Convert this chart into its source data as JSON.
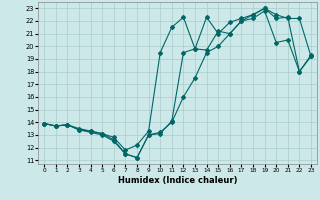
{
  "xlabel": "Humidex (Indice chaleur)",
  "bg_color": "#cce8e8",
  "grid_color": "#aacccc",
  "line_color": "#006666",
  "xlim_min": -0.5,
  "xlim_max": 23.5,
  "ylim_min": 10.7,
  "ylim_max": 23.5,
  "xticks": [
    0,
    1,
    2,
    3,
    4,
    5,
    6,
    7,
    8,
    9,
    10,
    11,
    12,
    13,
    14,
    15,
    16,
    17,
    18,
    19,
    20,
    21,
    22,
    23
  ],
  "yticks": [
    11,
    12,
    13,
    14,
    15,
    16,
    17,
    18,
    19,
    20,
    21,
    22,
    23
  ],
  "line1_x": [
    0,
    1,
    2,
    3,
    4,
    5,
    6,
    7,
    8,
    9,
    10,
    11,
    12,
    13,
    14,
    15,
    16,
    17,
    18,
    19,
    20,
    21,
    22,
    23
  ],
  "line1_y": [
    13.9,
    13.7,
    13.8,
    13.5,
    13.3,
    13.1,
    12.6,
    11.5,
    11.2,
    13.0,
    13.2,
    14.0,
    16.0,
    17.5,
    19.5,
    20.0,
    21.0,
    22.0,
    22.5,
    23.0,
    22.5,
    22.2,
    22.2,
    19.2
  ],
  "line2_x": [
    0,
    1,
    2,
    3,
    4,
    5,
    6,
    7,
    8,
    9,
    10,
    11,
    12,
    13,
    14,
    15,
    16,
    17,
    18,
    19,
    20,
    21,
    22,
    23
  ],
  "line2_y": [
    13.9,
    13.7,
    13.8,
    13.4,
    13.2,
    13.0,
    12.5,
    11.5,
    11.2,
    13.0,
    13.1,
    14.1,
    19.5,
    19.8,
    19.7,
    21.2,
    21.0,
    22.0,
    22.2,
    22.8,
    20.3,
    20.5,
    18.0,
    19.3
  ],
  "line3_x": [
    0,
    1,
    2,
    3,
    4,
    5,
    6,
    7,
    8,
    9,
    10,
    11,
    12,
    13,
    14,
    15,
    16,
    17,
    18,
    19,
    20,
    21,
    22,
    23
  ],
  "line3_y": [
    13.9,
    13.7,
    13.8,
    13.4,
    13.3,
    13.1,
    12.8,
    11.8,
    12.2,
    13.3,
    19.5,
    21.5,
    22.3,
    19.8,
    22.3,
    21.0,
    21.9,
    22.2,
    22.5,
    23.0,
    22.2,
    22.3,
    18.0,
    19.2
  ]
}
